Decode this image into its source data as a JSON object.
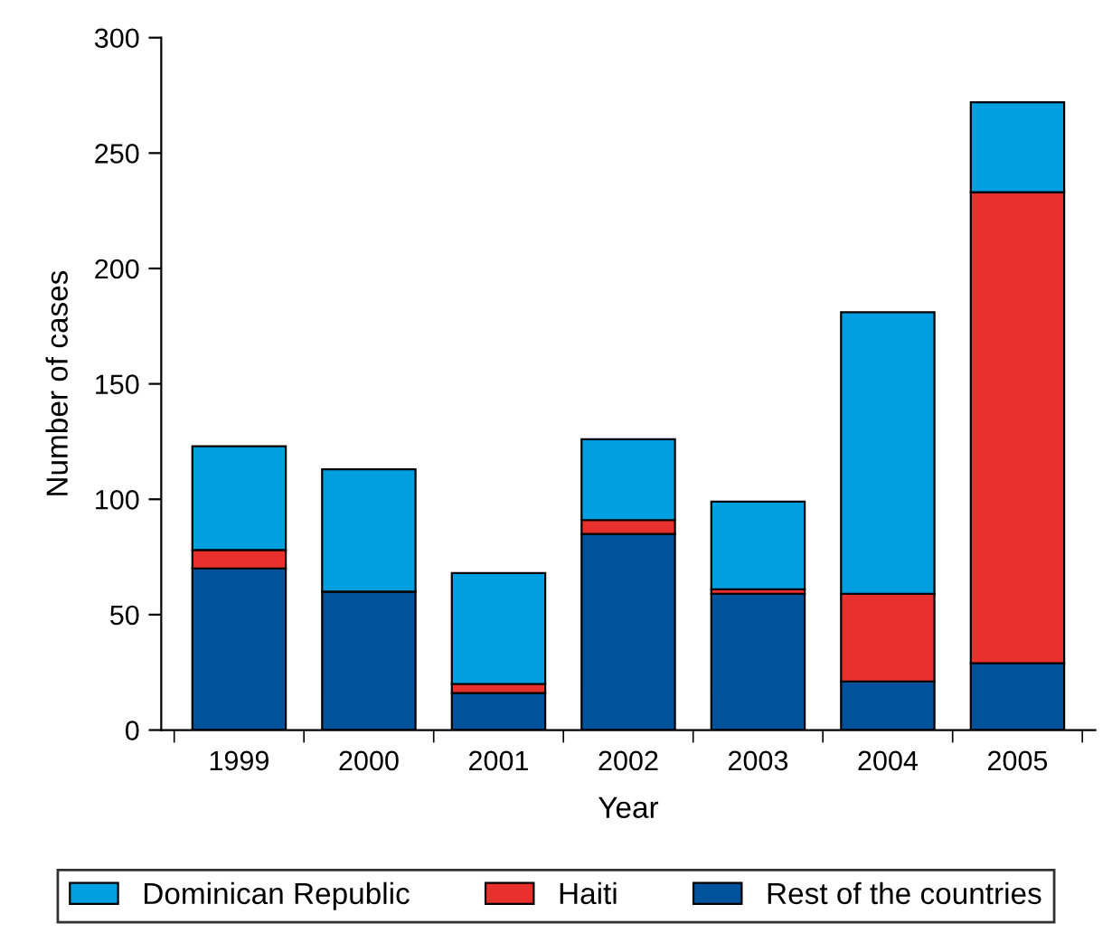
{
  "chart_data": {
    "type": "bar",
    "stacked": true,
    "xlabel": "Year",
    "ylabel": "Number of cases",
    "categories": [
      "1999",
      "2000",
      "2001",
      "2002",
      "2003",
      "2004",
      "2005"
    ],
    "series": [
      {
        "name": "Rest of the countries",
        "color": "#00539b",
        "values": [
          70,
          60,
          16,
          85,
          59,
          21,
          29
        ]
      },
      {
        "name": "Haiti",
        "color": "#e8312d",
        "values": [
          8,
          0,
          4,
          6,
          2,
          38,
          204
        ]
      },
      {
        "name": "Dominican Republic",
        "color": "#00a0e0",
        "values": [
          45,
          53,
          48,
          35,
          38,
          122,
          39
        ]
      }
    ],
    "ylim": [
      0,
      300
    ],
    "yticks": [
      0,
      50,
      100,
      150,
      200,
      250,
      300
    ],
    "grid": false,
    "legend": "bottom"
  }
}
